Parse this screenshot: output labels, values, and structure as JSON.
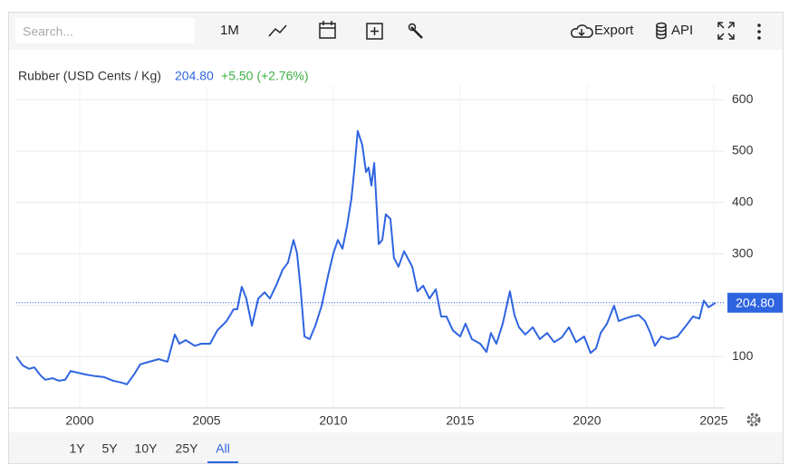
{
  "toolbar": {
    "search": "Search...",
    "interval": "1M",
    "export": "Export",
    "api": "API"
  },
  "ranges": [
    "1Y",
    "5Y",
    "10Y",
    "25Y",
    "All"
  ],
  "active_range": 4,
  "chart_data": {
    "type": "line",
    "title": "Rubber (USD Cents / Kg)",
    "price": "204.80",
    "change": "+5.50 (+2.76%)",
    "x": [
      1997.5,
      1997.75,
      1998.0,
      1998.21,
      1998.46,
      1998.64,
      1998.93,
      1999.18,
      1999.43,
      1999.64,
      1999.89,
      2000.25,
      2000.61,
      2000.96,
      2001.32,
      2001.68,
      2001.86,
      2002.14,
      2002.39,
      2002.75,
      2003.11,
      2003.46,
      2003.75,
      2003.93,
      2004.18,
      2004.54,
      2004.79,
      2005.14,
      2005.43,
      2005.79,
      2006.07,
      2006.21,
      2006.39,
      2006.57,
      2006.79,
      2007.04,
      2007.29,
      2007.5,
      2007.75,
      2008.0,
      2008.21,
      2008.43,
      2008.57,
      2008.71,
      2008.86,
      2009.07,
      2009.29,
      2009.54,
      2009.79,
      2010.0,
      2010.18,
      2010.36,
      2010.54,
      2010.71,
      2010.82,
      2010.96,
      2011.14,
      2011.29,
      2011.39,
      2011.5,
      2011.61,
      2011.79,
      2011.93,
      2012.07,
      2012.25,
      2012.39,
      2012.57,
      2012.79,
      2012.93,
      2013.11,
      2013.32,
      2013.54,
      2013.79,
      2014.04,
      2014.25,
      2014.46,
      2014.71,
      2015.0,
      2015.21,
      2015.46,
      2015.79,
      2016.04,
      2016.21,
      2016.43,
      2016.68,
      2016.96,
      2017.14,
      2017.32,
      2017.57,
      2017.86,
      2018.14,
      2018.43,
      2018.71,
      2019.0,
      2019.29,
      2019.57,
      2019.89,
      2020.14,
      2020.36,
      2020.54,
      2020.79,
      2021.07,
      2021.25,
      2021.5,
      2021.75,
      2022.04,
      2022.29,
      2022.5,
      2022.68,
      2022.93,
      2023.21,
      2023.57,
      2023.86,
      2024.18,
      2024.43,
      2024.61,
      2024.79,
      2025.07
    ],
    "series": [
      {
        "name": "Rubber",
        "color": "#2f64e0",
        "values": [
          100,
          83,
          76,
          79,
          63,
          55,
          58,
          53,
          55,
          72,
          69,
          65,
          62,
          60,
          53,
          49,
          46,
          65,
          85,
          90,
          95,
          90,
          143,
          125,
          132,
          121,
          125,
          125,
          151,
          169,
          192,
          192,
          236,
          213,
          160,
          213,
          225,
          213,
          239,
          269,
          283,
          327,
          301,
          231,
          139,
          134,
          160,
          199,
          257,
          301,
          327,
          310,
          354,
          407,
          459,
          539,
          512,
          459,
          468,
          433,
          477,
          319,
          327,
          377,
          368,
          292,
          275,
          305,
          292,
          275,
          227,
          238,
          213,
          231,
          178,
          178,
          151,
          139,
          164,
          134,
          125,
          109,
          146,
          125,
          164,
          227,
          181,
          157,
          143,
          157,
          134,
          146,
          128,
          137,
          157,
          128,
          139,
          107,
          116,
          146,
          164,
          199,
          169,
          174,
          178,
          181,
          169,
          146,
          121,
          139,
          134,
          139,
          157,
          178,
          174,
          209,
          196,
          204.8
        ]
      }
    ],
    "xlim": [
      1997.5,
      2025.43
    ],
    "xticks": [
      2000,
      2005,
      2010,
      2015,
      2020,
      2025
    ],
    "ylim": [
      0,
      700
    ],
    "yticks": [
      100,
      200,
      300,
      400,
      500,
      600
    ],
    "grid": true,
    "change_color": "#3cb043",
    "price_color": "#2f64e0"
  }
}
